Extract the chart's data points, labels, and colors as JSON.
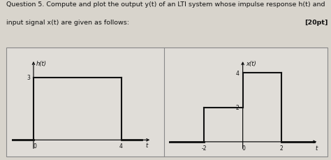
{
  "title_line1": "Question 5. Compute and plot the output y(t) of an LTI system whose impulse response h(t) and",
  "title_line2": "input signal x(t) are given as follows:",
  "points_text": "[20pt]",
  "bg_color": "#d8d4cc",
  "plot_area_bg": "#d8d4cc",
  "subplot_bg": "#e0ddd8",
  "left_plot": {
    "label": "h(t)",
    "xtick_labels": [
      "0",
      "4"
    ],
    "xtick_vals": [
      0,
      4
    ],
    "ytick_label": "3",
    "ytick_val": 3,
    "xlim": [
      -1.0,
      5.8
    ],
    "ylim": [
      -0.5,
      4.2
    ],
    "pulse_start": 0,
    "pulse_end": 4,
    "pulse_height": 3,
    "arrow_label": "t"
  },
  "right_plot": {
    "label": "x(t)",
    "xtick_labels": [
      "-2",
      "0",
      "2"
    ],
    "xtick_vals": [
      -2,
      0,
      2
    ],
    "ytick_label_2": "2",
    "ytick_label_4": "4",
    "ytick_val_2": 2,
    "ytick_val_4": 4,
    "xlim": [
      -3.8,
      4.2
    ],
    "ylim": [
      -0.5,
      5.2
    ],
    "seg1_start": -2,
    "seg1_end": 0,
    "seg1_height": 2,
    "seg2_start": 0,
    "seg2_end": 2,
    "seg2_height": 4,
    "arrow_label": "t"
  },
  "line_color": "#111111",
  "axis_color": "#111111",
  "text_color": "#111111",
  "border_color": "#888888",
  "font_size_title": 6.8,
  "font_size_label": 6.0,
  "font_size_tick": 5.5
}
